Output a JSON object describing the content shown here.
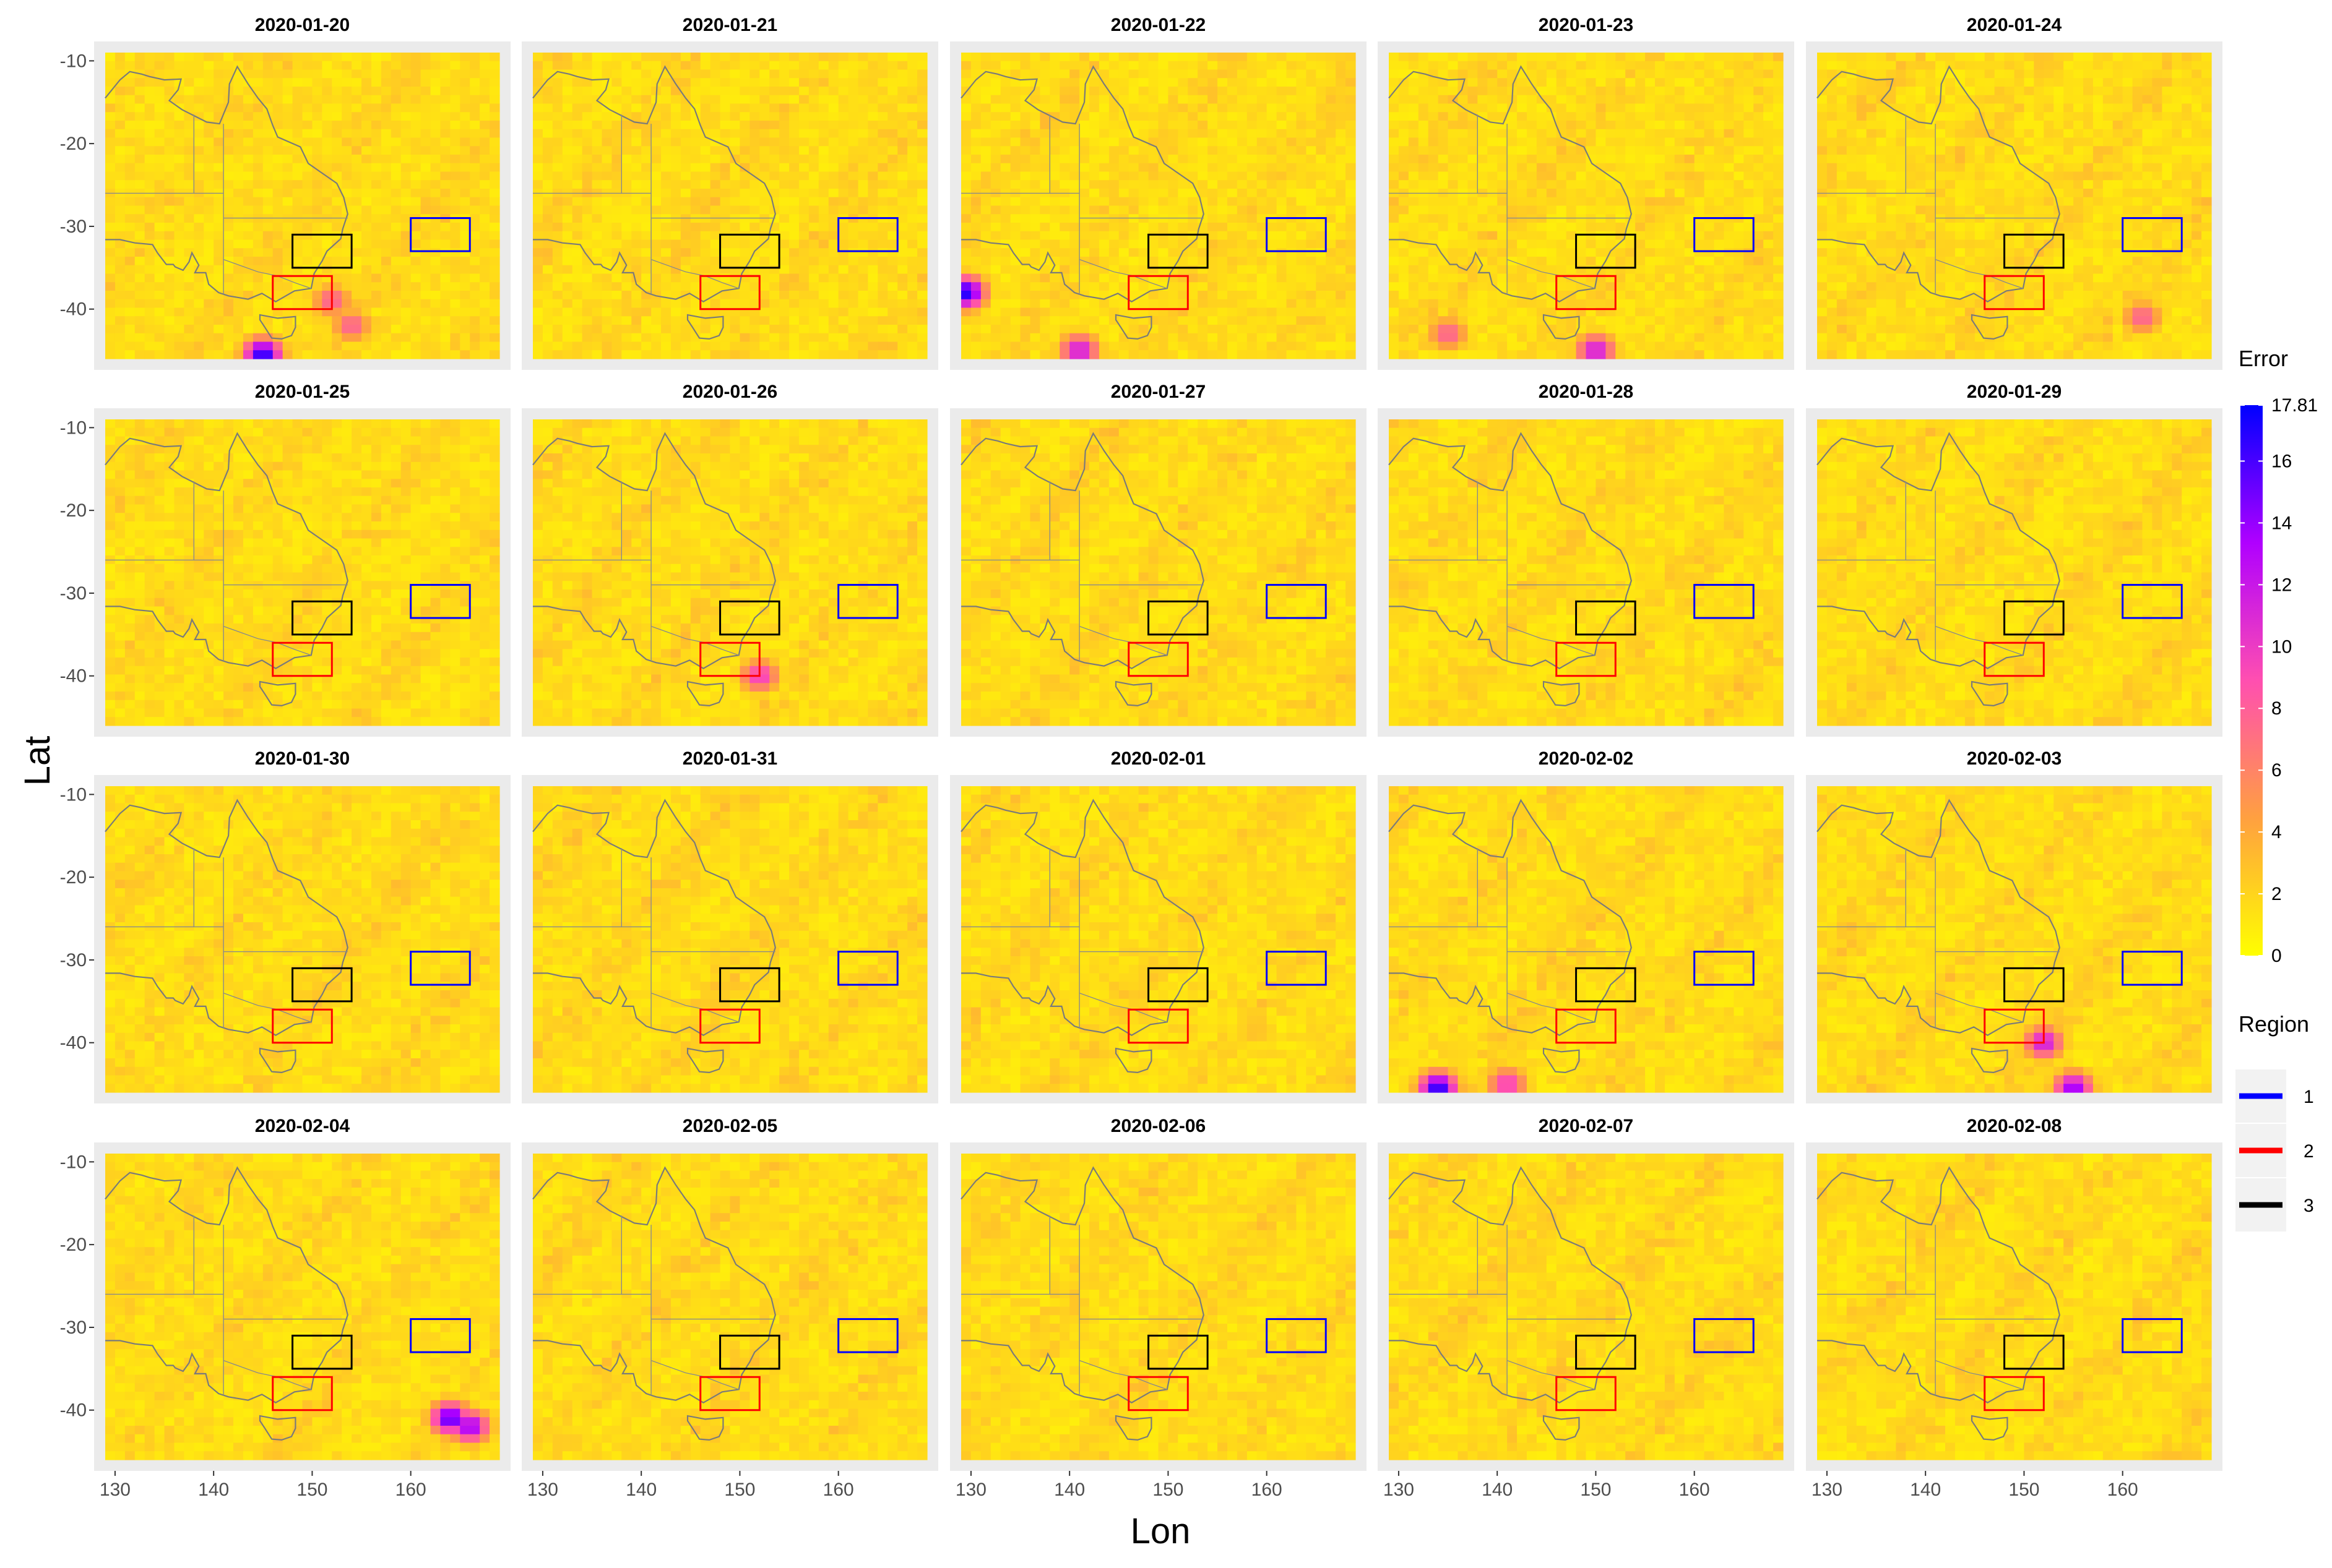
{
  "chart_data": {
    "type": "heatmap",
    "layout": "facet grid 4 rows x 5 columns of spatial error maps",
    "facets": [
      "2020-01-20",
      "2020-01-21",
      "2020-01-22",
      "2020-01-23",
      "2020-01-24",
      "2020-01-25",
      "2020-01-26",
      "2020-01-27",
      "2020-01-28",
      "2020-01-29",
      "2020-01-30",
      "2020-01-31",
      "2020-02-01",
      "2020-02-02",
      "2020-02-03",
      "2020-02-04",
      "2020-02-05",
      "2020-02-06",
      "2020-02-07",
      "2020-02-08"
    ],
    "xlabel": "Lon",
    "ylabel": "Lat",
    "xlim": [
      129,
      169
    ],
    "ylim": [
      -46,
      -9
    ],
    "x_ticks": [
      130,
      140,
      150,
      160
    ],
    "y_ticks": [
      -10,
      -20,
      -30,
      -40
    ],
    "x_tick_labels": [
      "130",
      "140",
      "150",
      "160"
    ],
    "y_tick_labels": [
      "-10",
      "-20",
      "-30",
      "-40"
    ],
    "grid": true,
    "fill_scale": {
      "title": "Error",
      "min": 0,
      "max": 17.81,
      "colors": [
        "#ffff00",
        "#ffa040",
        "#ff4fb0",
        "#b000ff",
        "#0000ff"
      ],
      "breaks": [
        0,
        2,
        4,
        6,
        8,
        10,
        12,
        14,
        16,
        17.81
      ],
      "break_labels": [
        "0",
        "2",
        "4",
        "6",
        "8",
        "10",
        "12",
        "14",
        "16",
        "17.81"
      ]
    },
    "regions": {
      "title": "Region",
      "items": [
        {
          "label": "1",
          "color": "#0000ff",
          "lon": [
            160,
            166
          ],
          "lat": [
            -33,
            -29
          ]
        },
        {
          "label": "2",
          "color": "#ff0000",
          "lon": [
            146,
            152
          ],
          "lat": [
            -40,
            -36
          ]
        },
        {
          "label": "3",
          "color": "#000000",
          "lon": [
            148,
            154
          ],
          "lat": [
            -35,
            -31
          ]
        }
      ]
    },
    "hotspots": [
      {
        "facet": 0,
        "lon": 152,
        "lat": -39,
        "value": 8
      },
      {
        "facet": 0,
        "lon": 145,
        "lat": -45.5,
        "value": 17
      },
      {
        "facet": 0,
        "lon": 154,
        "lat": -42,
        "value": 8
      },
      {
        "facet": 2,
        "lon": 129.5,
        "lat": -38,
        "value": 17
      },
      {
        "facet": 2,
        "lon": 141,
        "lat": -45,
        "value": 12
      },
      {
        "facet": 3,
        "lon": 150,
        "lat": -45,
        "value": 12
      },
      {
        "facet": 3,
        "lon": 135,
        "lat": -43,
        "value": 8
      },
      {
        "facet": 4,
        "lon": 162,
        "lat": -41,
        "value": 8
      },
      {
        "facet": 6,
        "lon": 152,
        "lat": -40,
        "value": 10
      },
      {
        "facet": 13,
        "lon": 134,
        "lat": -45.5,
        "value": 17
      },
      {
        "facet": 13,
        "lon": 141,
        "lat": -45,
        "value": 10
      },
      {
        "facet": 14,
        "lon": 152,
        "lat": -40,
        "value": 12
      },
      {
        "facet": 14,
        "lon": 155,
        "lat": -45.5,
        "value": 14
      },
      {
        "facet": 15,
        "lon": 164,
        "lat": -41,
        "value": 16
      },
      {
        "facet": 15,
        "lon": 166,
        "lat": -42,
        "value": 14
      }
    ]
  }
}
